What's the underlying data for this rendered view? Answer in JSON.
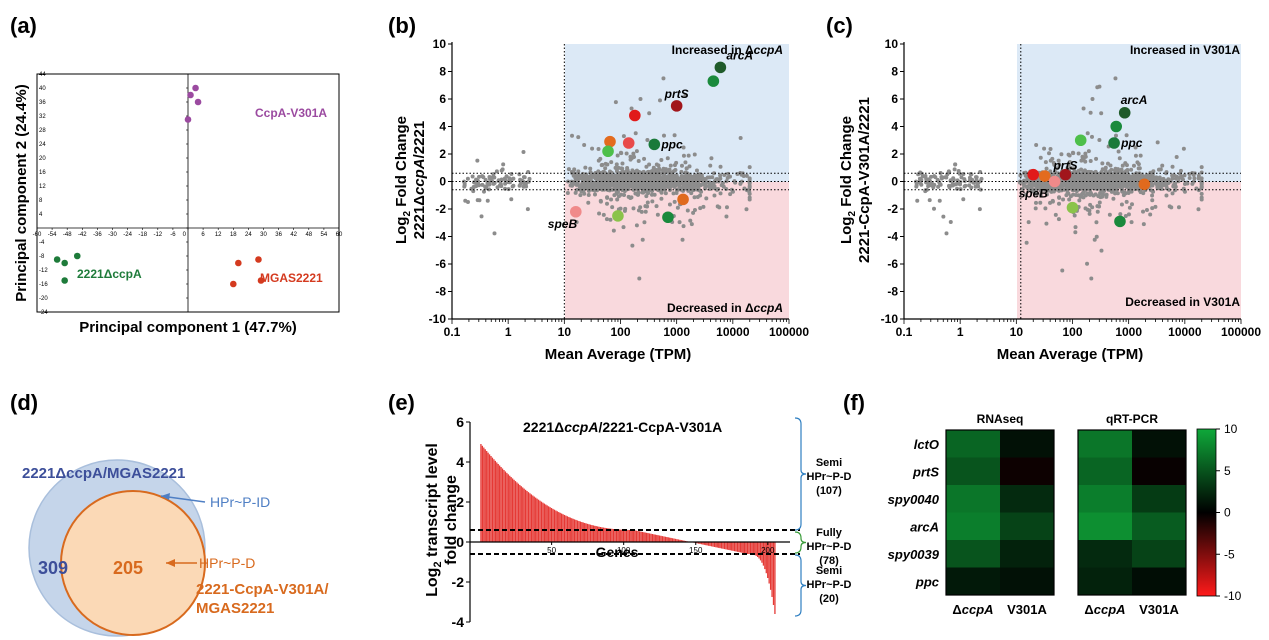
{
  "chart_data": [
    {
      "panel": "(a)",
      "type": "scatter",
      "xlabel": "Principal component 1 (47.7%)",
      "ylabel": "Principal component 2 (24.4%)",
      "xlim": [
        -60,
        60
      ],
      "ylim": [
        -24,
        44
      ],
      "xticks": [
        -60,
        -54,
        -48,
        -42,
        -36,
        -30,
        -24,
        -18,
        -12,
        -6,
        0,
        6,
        12,
        18,
        24,
        30,
        36,
        42,
        48,
        54,
        60
      ],
      "yticks": [
        -24,
        -20,
        -16,
        -12,
        -8,
        -4,
        0,
        4,
        8,
        12,
        16,
        20,
        24,
        28,
        32,
        36,
        40,
        44
      ],
      "groups": [
        {
          "name": "CcpA-V301A",
          "color": "#9b4aa0",
          "points": [
            [
              0,
              31
            ],
            [
              1,
              38
            ],
            [
              3,
              40
            ],
            [
              4,
              36
            ]
          ]
        },
        {
          "name": "2221ΔccpA",
          "color": "#1e7b3a",
          "points": [
            [
              -52,
              -9
            ],
            [
              -49,
              -10
            ],
            [
              -44,
              -8
            ],
            [
              -49,
              -15
            ]
          ]
        },
        {
          "name": "MGAS2221",
          "color": "#d43a1f",
          "points": [
            [
              18,
              -16
            ],
            [
              20,
              -10
            ],
            [
              28,
              -9
            ],
            [
              29,
              -15
            ]
          ]
        }
      ]
    },
    {
      "panel": "(b)",
      "type": "scatter",
      "xlabel": "Mean Average (TPM)",
      "ylabel": "Log2 Fold Change 2221ΔccpA/2221",
      "ylabel_lines": [
        "Log",
        "2",
        " Fold Change",
        "2221Δ",
        "ccpA",
        "/2221"
      ],
      "xscale": "log",
      "xlim": [
        0.1,
        100000
      ],
      "ylim": [
        -10,
        10
      ],
      "xtick_labels": [
        "0.1",
        "1",
        "10",
        "100",
        "1000",
        "10000",
        "100000"
      ],
      "yticks": [
        -10,
        -8,
        -6,
        -4,
        -2,
        0,
        2,
        4,
        6,
        8,
        10
      ],
      "threshold_x": 10,
      "threshold_y": [
        -0.6,
        0.6
      ],
      "region_labels": {
        "up": "Increased in ΔccpA",
        "down": "Decreased in ΔccpA"
      },
      "up_prefix": "Increased in Δ",
      "up_italic": "ccpA",
      "down_prefix": "Decreased in Δ",
      "down_italic": "ccpA",
      "highlighted": [
        {
          "gene": "arcA",
          "x": 6000,
          "y": 8.3,
          "color": "#1f5b2a"
        },
        {
          "gene": "",
          "x": 4500,
          "y": 7.3,
          "color": "#1a8a3c"
        },
        {
          "gene": "prtS",
          "x": 1000,
          "y": 5.5,
          "color": "#a1161b"
        },
        {
          "gene": "",
          "x": 180,
          "y": 4.8,
          "color": "#e11a1a"
        },
        {
          "gene": "",
          "x": 65,
          "y": 2.9,
          "color": "#e36b1e"
        },
        {
          "gene": "",
          "x": 140,
          "y": 2.8,
          "color": "#e84a4a"
        },
        {
          "gene": "ppc",
          "x": 400,
          "y": 2.7,
          "color": "#1a7a3a"
        },
        {
          "gene": "",
          "x": 60,
          "y": 2.2,
          "color": "#4dbf4a"
        },
        {
          "gene": "speB",
          "x": 16,
          "y": -2.2,
          "color": "#f08a8a"
        },
        {
          "gene": "",
          "x": 90,
          "y": -2.5,
          "color": "#8bc34a"
        },
        {
          "gene": "",
          "x": 700,
          "y": -2.6,
          "color": "#1a8a3c"
        },
        {
          "gene": "",
          "x": 1300,
          "y": -1.3,
          "color": "#e06a1e"
        }
      ]
    },
    {
      "panel": "(c)",
      "type": "scatter",
      "xlabel": "Mean Average (TPM)",
      "ylabel": "Log2 Fold Change 2221-CcpA-V301A/2221",
      "ylabel_lines": [
        "Log",
        "2",
        " Fold Change",
        "2221-CcpA-V301A/2221"
      ],
      "xscale": "log",
      "xlim": [
        0.1,
        100000
      ],
      "ylim": [
        -10,
        10
      ],
      "xtick_labels": [
        "0.1",
        "1",
        "10",
        "100",
        "1000",
        "10000",
        "100000"
      ],
      "yticks": [
        -10,
        -8,
        -6,
        -4,
        -2,
        0,
        2,
        4,
        6,
        8,
        10
      ],
      "threshold_x": 12,
      "threshold_y": [
        -0.6,
        0.6
      ],
      "region_labels": {
        "up": "Increased in V301A",
        "down": "Decreased in V301A"
      },
      "highlighted": [
        {
          "gene": "arcA",
          "x": 850,
          "y": 5.0,
          "color": "#1f5b2a"
        },
        {
          "gene": "",
          "x": 600,
          "y": 4.0,
          "color": "#1a8a3c"
        },
        {
          "gene": "ppc",
          "x": 550,
          "y": 2.8,
          "color": "#1a7a3a"
        },
        {
          "gene": "",
          "x": 140,
          "y": 3.0,
          "color": "#4dbf4a"
        },
        {
          "gene": "prtS",
          "x": 75,
          "y": 0.5,
          "color": "#a1161b"
        },
        {
          "gene": "",
          "x": 20,
          "y": 0.5,
          "color": "#e11a1a"
        },
        {
          "gene": "",
          "x": 32,
          "y": 0.4,
          "color": "#e36b1e"
        },
        {
          "gene": "speB",
          "x": 48,
          "y": 0.0,
          "color": "#f08a8a"
        },
        {
          "gene": "",
          "x": 100,
          "y": -1.9,
          "color": "#8bc34a"
        },
        {
          "gene": "",
          "x": 700,
          "y": -2.9,
          "color": "#1a8a3c"
        },
        {
          "gene": "",
          "x": 1900,
          "y": -0.2,
          "color": "#e06a1e"
        }
      ]
    },
    {
      "panel": "(d)",
      "type": "venn",
      "sets": [
        {
          "label_line1": "2221ΔccpA/MGAS2221",
          "count": "309",
          "annotation": "HPr~P-ID",
          "color": "#3d4f9a"
        },
        {
          "label_line1": "2221-CcpA-V301A/",
          "label_line2": "MGAS2221",
          "count": "205",
          "annotation": "HPr~P-D",
          "color": "#d86a1e"
        }
      ]
    },
    {
      "panel": "(e)",
      "type": "bar",
      "title": "2221ΔccpA/2221-CcpA-V301A",
      "title_prefix": "2221Δ",
      "title_italic": "ccpA",
      "title_suffix": "/2221-CcpA-V301A",
      "xlabel": "Genes",
      "ylabel": "Log2 transcript level fold change",
      "ylabel_line1_a": "Log",
      "ylabel_line1_sub": "2",
      "ylabel_line1_b": " transcript level",
      "ylabel_line2": "fold  change",
      "n_genes": 205,
      "ylim": [
        -4,
        6
      ],
      "yticks": [
        -4,
        -2,
        0,
        2,
        4,
        6
      ],
      "xticks": [
        50,
        100,
        150,
        200
      ],
      "threshold": [
        -0.6,
        0.6
      ],
      "segments": [
        {
          "from_gene": 1,
          "to_gene": 107,
          "start": 4.9,
          "end": 0.6
        },
        {
          "from_gene": 108,
          "to_gene": 185,
          "start": 0.58,
          "end": -0.58
        },
        {
          "from_gene": 186,
          "to_gene": 205,
          "start": -0.6,
          "end": -3.6
        }
      ],
      "bar_color": "#e53935",
      "brackets": [
        {
          "lines": [
            "Semi",
            "HPr~P-D",
            "(107)"
          ],
          "color": "#2f7fc1"
        },
        {
          "lines": [
            "Fully",
            "HPr~P-D",
            "(78)"
          ],
          "color": "#3a9c3a"
        },
        {
          "lines": [
            "Semi",
            "HPr~P-D",
            "(20)"
          ],
          "color": "#2f7fc1"
        }
      ]
    },
    {
      "panel": "(f)",
      "type": "heatmap",
      "genes": [
        "lctO",
        "prtS",
        "spy0040",
        "arcA",
        "spy0039",
        "ppc"
      ],
      "panels": [
        {
          "title": "RNAseq",
          "columns": [
            "ΔccpA",
            "V301A"
          ],
          "values": [
            [
              6,
              1
            ],
            [
              5,
              -0.5
            ],
            [
              7,
              2.5
            ],
            [
              7.5,
              4
            ],
            [
              5,
              2
            ],
            [
              1.5,
              1
            ]
          ]
        },
        {
          "title": "qRT-PCR",
          "columns": [
            "ΔccpA",
            "V301A"
          ],
          "values": [
            [
              7,
              1
            ],
            [
              6,
              -0.3
            ],
            [
              7.5,
              3.5
            ],
            [
              8.5,
              5.5
            ],
            [
              2.5,
              4
            ],
            [
              2,
              0.8
            ]
          ]
        }
      ],
      "colorbar": {
        "min": -10,
        "max": 10,
        "ticks": [
          "10",
          "5",
          "0",
          "-5",
          "-10"
        ]
      }
    }
  ]
}
